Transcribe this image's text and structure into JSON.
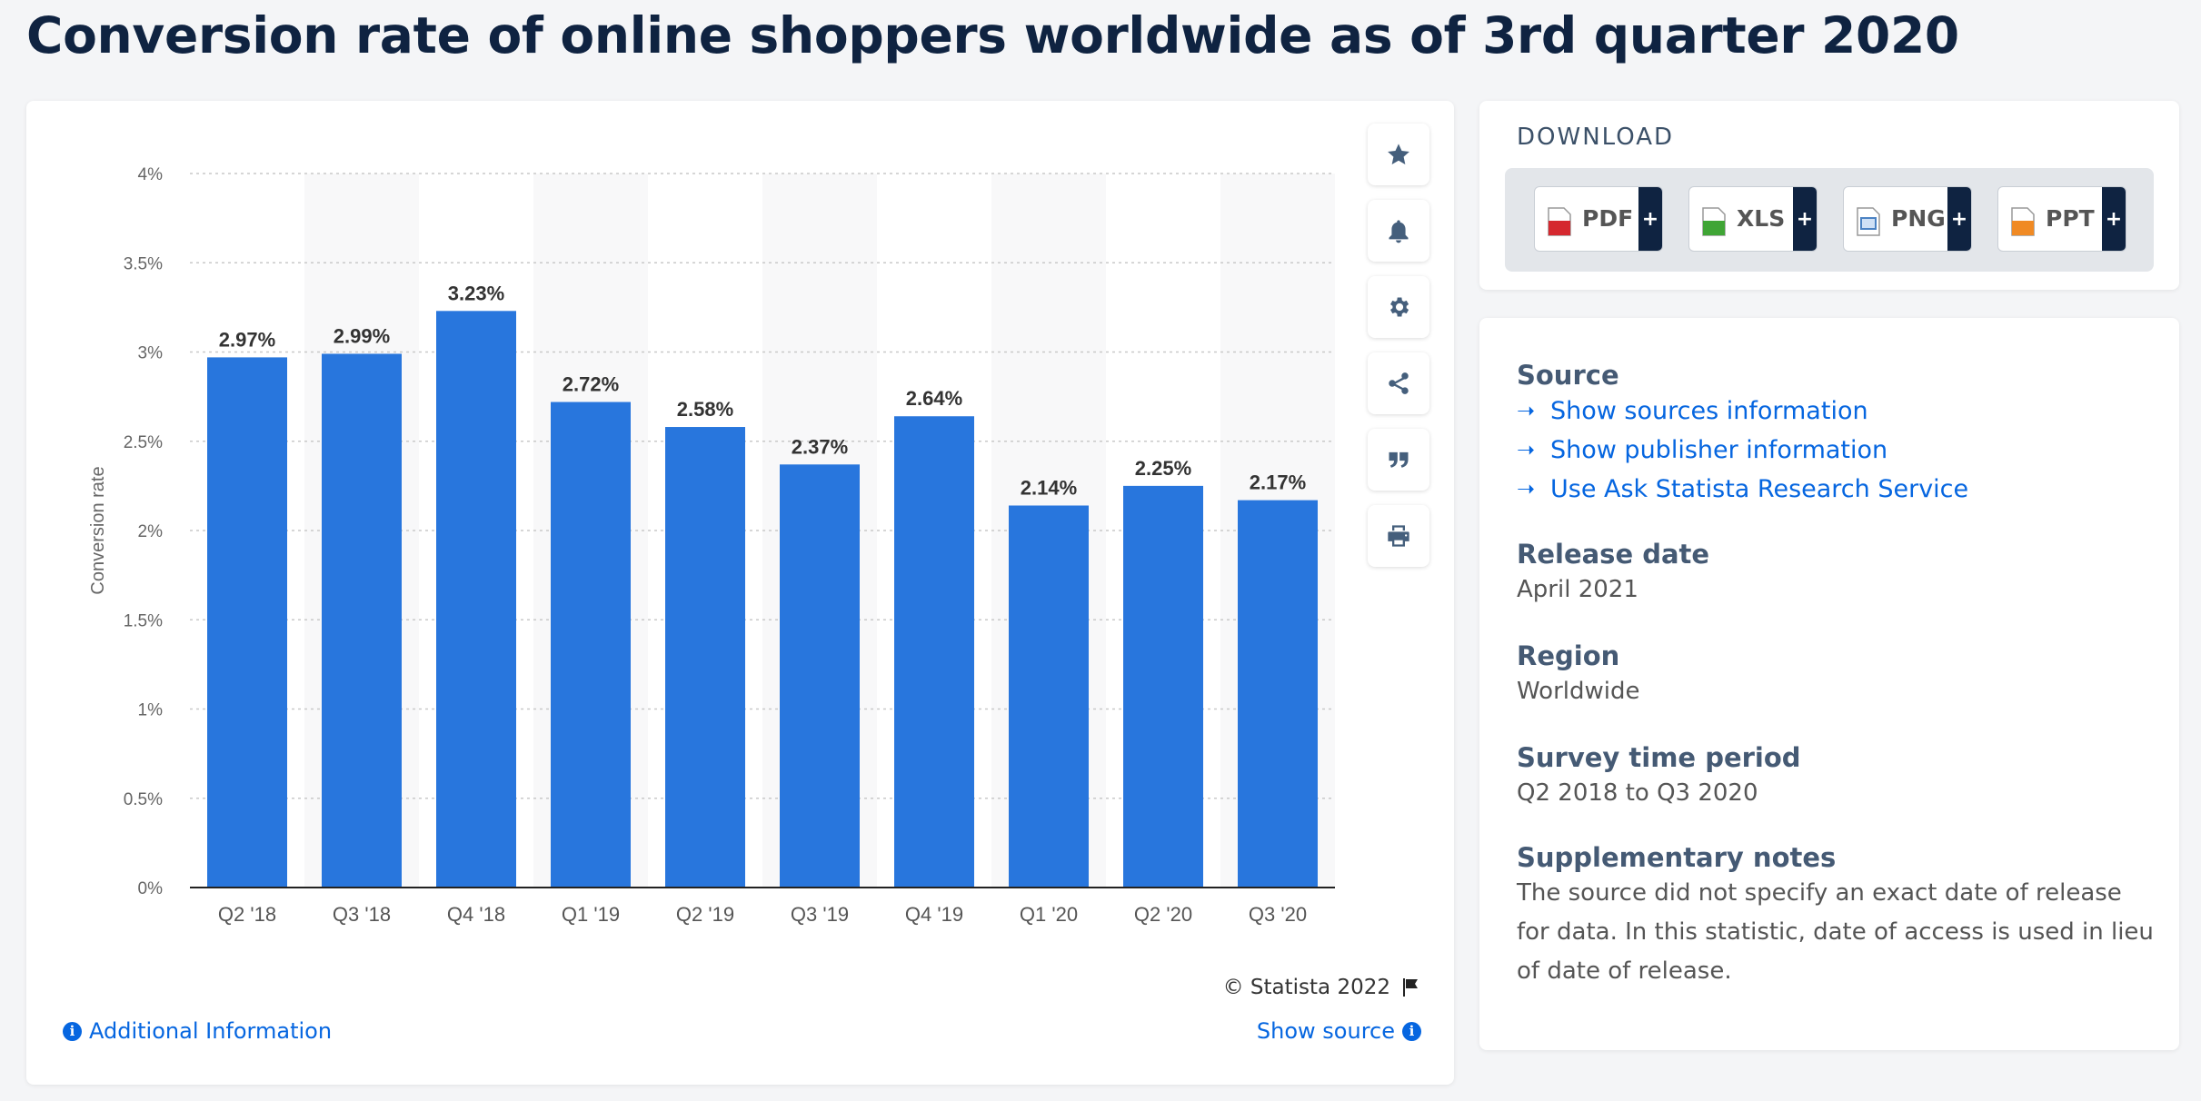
{
  "page": {
    "title": "Conversion rate of online shoppers worldwide as of 3rd quarter 2020"
  },
  "chart_data": {
    "type": "bar",
    "title": "",
    "xlabel": "",
    "ylabel": "Conversion rate",
    "categories": [
      "Q2 '18",
      "Q3 '18",
      "Q4 '18",
      "Q1 '19",
      "Q2 '19",
      "Q3 '19",
      "Q4 '19",
      "Q1 '20",
      "Q2 '20",
      "Q3 '20"
    ],
    "values": [
      2.97,
      2.99,
      3.23,
      2.72,
      2.58,
      2.37,
      2.64,
      2.14,
      2.25,
      2.17
    ],
    "value_labels": [
      "2.97%",
      "2.99%",
      "3.23%",
      "2.72%",
      "2.58%",
      "2.37%",
      "2.64%",
      "2.14%",
      "2.25%",
      "2.17%"
    ],
    "yticks": [
      0,
      0.5,
      1,
      1.5,
      2,
      2.5,
      3,
      3.5,
      4
    ],
    "ytick_labels": [
      "0%",
      "0.5%",
      "1%",
      "1.5%",
      "2%",
      "2.5%",
      "3%",
      "3.5%",
      "4%"
    ],
    "ylim": [
      0,
      4
    ],
    "grid": true,
    "legend": "none",
    "bar_color": "#2876dd"
  },
  "tools": [
    {
      "icon": "star-icon"
    },
    {
      "icon": "bell-icon"
    },
    {
      "icon": "gear-icon"
    },
    {
      "icon": "share-icon"
    },
    {
      "icon": "quote-icon"
    },
    {
      "icon": "print-icon"
    }
  ],
  "footer": {
    "credit": "© Statista 2022",
    "additional_info": "Additional Information",
    "show_source": "Show source"
  },
  "download": {
    "title": "DOWNLOAD",
    "buttons": [
      {
        "label": "PDF",
        "color": "#d5282f"
      },
      {
        "label": "XLS",
        "color": "#3fa535"
      },
      {
        "label": "PNG",
        "color": "#4b82c3"
      },
      {
        "label": "PPT",
        "color": "#f08a24"
      }
    ]
  },
  "info": {
    "source_title": "Source",
    "source_links": [
      "Show sources information",
      "Show publisher information",
      "Use Ask Statista Research Service"
    ],
    "release_title": "Release date",
    "release_value": "April 2021",
    "region_title": "Region",
    "region_value": "Worldwide",
    "period_title": "Survey time period",
    "period_value": "Q2 2018 to Q3 2020",
    "notes_title": "Supplementary notes",
    "notes_lines": [
      "The source did not specify an exact date of release",
      "for data. In this statistic, date of access is used in lieu",
      "of date of release."
    ]
  },
  "colors": {
    "accent": "#0666e0",
    "title": "#0f2341"
  }
}
